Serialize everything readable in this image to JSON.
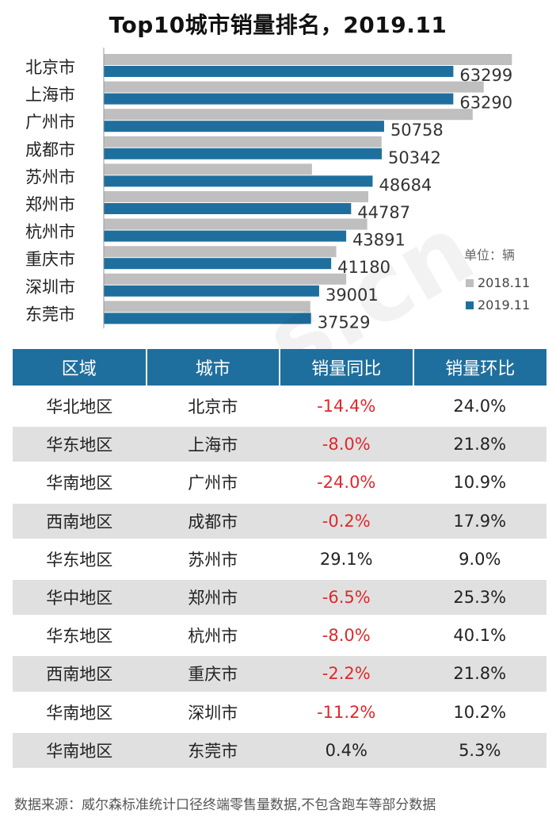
{
  "chart_data": {
    "type": "bar",
    "orientation": "horizontal",
    "title": "Top10城市销量排名，2019.11",
    "categories": [
      "北京市",
      "上海市",
      "广州市",
      "成都市",
      "苏州市",
      "郑州市",
      "杭州市",
      "重庆市",
      "深圳市",
      "东莞市"
    ],
    "series": [
      {
        "name": "2018.11",
        "color": "#bfbfbf",
        "values": [
          73900,
          68800,
          66800,
          50300,
          37700,
          47900,
          47700,
          42100,
          43900,
          37400
        ]
      },
      {
        "name": "2019.11",
        "color": "#1f6f9e",
        "values": [
          63299,
          63290,
          50758,
          50342,
          48684,
          44787,
          43891,
          41180,
          39001,
          37529
        ]
      }
    ],
    "data_labels": [
      "63299",
      "63290",
      "50758",
      "50342",
      "48684",
      "44787",
      "43891",
      "41180",
      "39001",
      "37529"
    ],
    "unit_label": "单位：辆",
    "legend_position": "right",
    "xlim": [
      0,
      75000
    ],
    "grid": false
  },
  "table": {
    "headers": [
      "区域",
      "城市",
      "销量同比",
      "销量环比"
    ],
    "rows": [
      [
        "华北地区",
        "北京市",
        "-14.4%",
        "24.0%"
      ],
      [
        "华东地区",
        "上海市",
        "-8.0%",
        "21.8%"
      ],
      [
        "华南地区",
        "广州市",
        "-24.0%",
        "10.9%"
      ],
      [
        "西南地区",
        "成都市",
        "-0.2%",
        "17.9%"
      ],
      [
        "华东地区",
        "苏州市",
        "29.1%",
        "9.0%"
      ],
      [
        "华中地区",
        "郑州市",
        "-6.5%",
        "25.3%"
      ],
      [
        "华东地区",
        "杭州市",
        "-8.0%",
        "40.1%"
      ],
      [
        "西南地区",
        "重庆市",
        "-2.2%",
        "21.8%"
      ],
      [
        "华南地区",
        "深圳市",
        "-11.2%",
        "10.2%"
      ],
      [
        "华南地区",
        "东莞市",
        "0.4%",
        "5.3%"
      ]
    ]
  },
  "watermark": "way-s.cn",
  "footer": "数据来源：威尔森标准统计口径终端零售量数据,不包含跑车等部分数据",
  "colors": {
    "header_bg": "#1f6f9e",
    "negative": "#e0282c",
    "stripe": "#e0e0e0"
  }
}
